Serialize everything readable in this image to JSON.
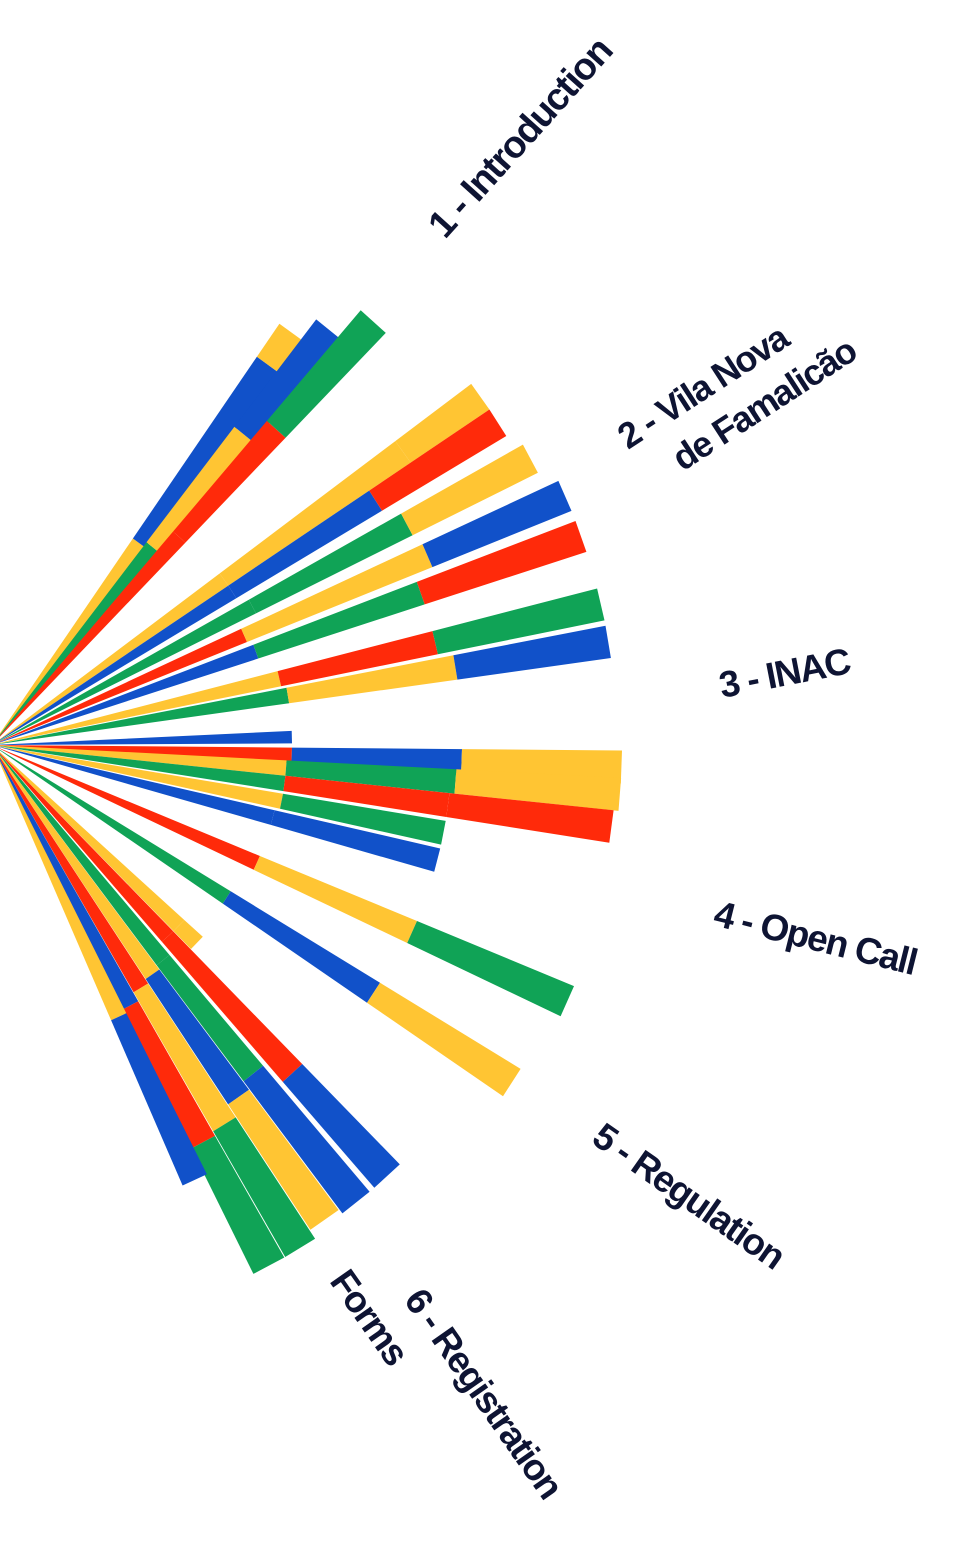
{
  "colors": {
    "yellow": "#ffc533",
    "blue": "#1151c9",
    "green": "#10a356",
    "red": "#ff2a0a",
    "label": "#0e1433"
  },
  "nav": [
    {
      "label_lines": [
        "1 - Introduction"
      ]
    },
    {
      "label_lines": [
        "2 - Vila Nova",
        "de Famalicão"
      ]
    },
    {
      "label_lines": [
        "3 - INAC"
      ]
    },
    {
      "label_lines": [
        "4 - Open Call"
      ]
    },
    {
      "label_lines": [
        "5 - Regulation"
      ]
    },
    {
      "label_lines": [
        "6 - Registration",
        "Forms"
      ]
    }
  ]
}
